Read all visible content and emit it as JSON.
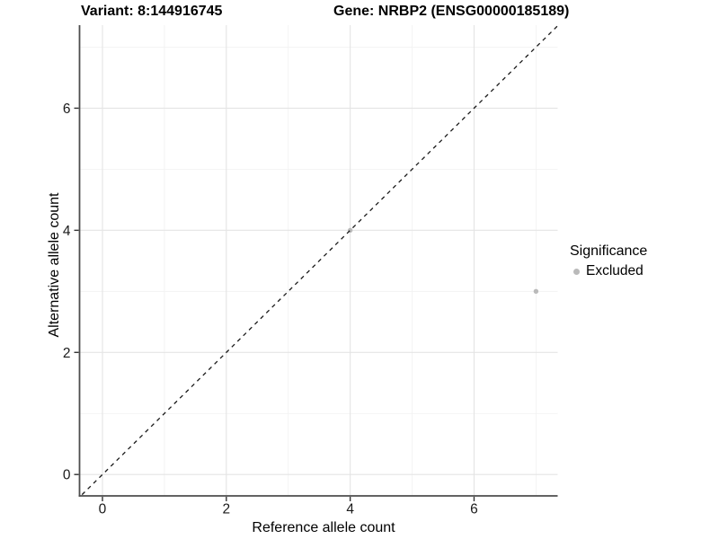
{
  "titles": {
    "left": "Variant: 8:144916745",
    "right": "Gene: NRBP2 (ENSG00000185189)"
  },
  "chart_data": {
    "type": "scatter",
    "title_left": "Variant: 8:144916745",
    "title_right": "Gene: NRBP2 (ENSG00000185189)",
    "xlabel": "Reference allele count",
    "ylabel": "Alternative allele count",
    "xlim": [
      -0.37,
      7.35
    ],
    "ylim": [
      -0.35,
      7.36
    ],
    "x_ticks": [
      0,
      2,
      4,
      6
    ],
    "x_tick_labels": [
      "0",
      "2",
      "4",
      "6"
    ],
    "y_ticks": [
      0,
      2,
      4,
      6
    ],
    "y_tick_labels": [
      "0",
      "2",
      "4",
      "6"
    ],
    "x_minor_ticks": [
      1,
      3,
      5,
      7
    ],
    "y_minor_ticks": [
      1,
      3,
      5,
      7
    ],
    "grid": "on",
    "identity_line": {
      "slope": 1,
      "intercept": 0,
      "style": "dashed",
      "color": "#1a1a1a"
    },
    "series": [
      {
        "name": "Excluded",
        "color": "#bababa",
        "points": [
          [
            4,
            4
          ],
          [
            7,
            3
          ]
        ]
      }
    ],
    "legend": {
      "position": "right",
      "title": "Significance",
      "items": [
        {
          "label": "Excluded",
          "color": "#bababa"
        }
      ]
    },
    "colors": {
      "major_grid": "#e4e4e4",
      "minor_grid": "#f1f1f1",
      "axis_line": "#4d4d4d",
      "tick_mark": "#333333",
      "tick_label": "#1a1a1a",
      "background": "#ffffff"
    }
  }
}
